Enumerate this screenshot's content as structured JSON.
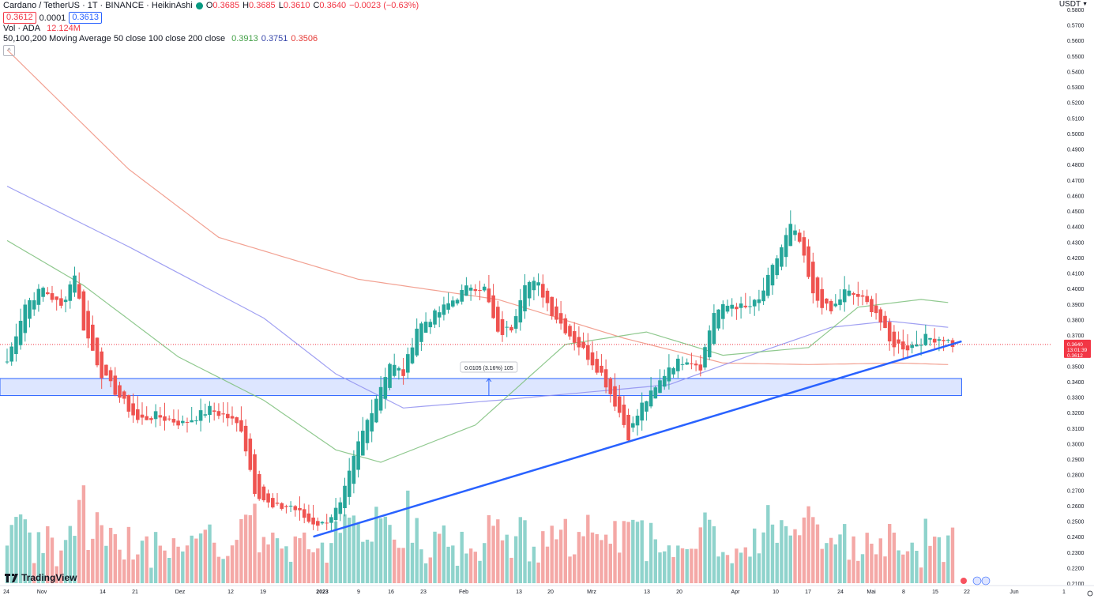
{
  "header": {
    "symbol": "Cardano / TetherUS · 1T · BINANCE · HeikinAshi",
    "ohlc": {
      "o_label": "O",
      "o": "0.3685",
      "h_label": "H",
      "h": "0.3685",
      "l_label": "L",
      "l": "0.3610",
      "c_label": "C",
      "c": "0.3640",
      "chg": "−0.0023 (−0.63%)"
    },
    "bid": "0.3612",
    "spread": "0.0001",
    "ask": "0.3613",
    "vol_label": "Vol · ADA",
    "vol_value": "12.124M",
    "ma_label": "50,100,200 Moving Average 50 close 100 close 200 close",
    "ma50_value": "0.3913",
    "ma100_value": "0.3751",
    "ma200_value": "0.3506",
    "collapse_icon": "chevron-up-icon"
  },
  "price_axis": {
    "unit": "USDT",
    "ticks": [
      "0.5800",
      "0.5700",
      "0.5600",
      "0.5500",
      "0.5400",
      "0.5300",
      "0.5200",
      "0.5100",
      "0.5000",
      "0.4900",
      "0.4800",
      "0.4700",
      "0.4600",
      "0.4500",
      "0.4400",
      "0.4300",
      "0.4200",
      "0.4100",
      "0.4000",
      "0.3900",
      "0.3800",
      "0.3700",
      "0.3600",
      "0.3500",
      "0.3400",
      "0.3300",
      "0.3200",
      "0.3100",
      "0.3000",
      "0.2900",
      "0.2800",
      "0.2700",
      "0.2600",
      "0.2500",
      "0.2400",
      "0.2300",
      "0.2200",
      "0.2100"
    ],
    "last_price": "0.3640",
    "countdown": "13:01:39",
    "bid_price": "0.3612"
  },
  "time_axis": {
    "labels": [
      "24",
      "Nov",
      "14",
      "21",
      "Dez",
      "12",
      "19",
      "2023",
      "9",
      "16",
      "23",
      "Feb",
      "13",
      "20",
      "Mrz",
      "13",
      "20",
      "Apr",
      "10",
      "17",
      "24",
      "Mai",
      "8",
      "15",
      "22",
      "Jun",
      "1"
    ]
  },
  "measure_label": "0.0105 (3.16%) 105",
  "logo_text": "TradingView",
  "colors": {
    "up": "#26a69a",
    "down": "#ef5350",
    "vol_up": "#8fd3cc",
    "vol_down": "#f4a8a6",
    "ma50": "#7cc07b",
    "ma100": "#8f8ff0",
    "ma200": "#f0907f",
    "trend": "#2962ff",
    "zone": "#2962ff",
    "last_label": "#f23645"
  },
  "chart_data": {
    "type": "candlestick",
    "x_range": [
      "2022-10-24",
      "2023-06-01"
    ],
    "ylim": [
      0.21,
      0.58
    ],
    "price_keyframes": [
      [
        "2022-10-24",
        0.353
      ],
      [
        "2022-10-28",
        0.39
      ],
      [
        "2022-11-01",
        0.4
      ],
      [
        "2022-11-05",
        0.388
      ],
      [
        "2022-11-08",
        0.41
      ],
      [
        "2022-11-10",
        0.375
      ],
      [
        "2022-11-14",
        0.345
      ],
      [
        "2022-11-18",
        0.33
      ],
      [
        "2022-11-22",
        0.315
      ],
      [
        "2022-11-26",
        0.318
      ],
      [
        "2022-12-02",
        0.313
      ],
      [
        "2022-12-08",
        0.322
      ],
      [
        "2022-12-12",
        0.317
      ],
      [
        "2022-12-15",
        0.31
      ],
      [
        "2022-12-18",
        0.27
      ],
      [
        "2022-12-22",
        0.258
      ],
      [
        "2022-12-26",
        0.26
      ],
      [
        "2022-12-30",
        0.25
      ],
      [
        "2023-01-02",
        0.248
      ],
      [
        "2023-01-06",
        0.26
      ],
      [
        "2023-01-10",
        0.3
      ],
      [
        "2023-01-14",
        0.33
      ],
      [
        "2023-01-17",
        0.352
      ],
      [
        "2023-01-20",
        0.345
      ],
      [
        "2023-01-23",
        0.375
      ],
      [
        "2023-01-28",
        0.385
      ],
      [
        "2023-02-01",
        0.395
      ],
      [
        "2023-02-04",
        0.402
      ],
      [
        "2023-02-07",
        0.4
      ],
      [
        "2023-02-10",
        0.37
      ],
      [
        "2023-02-13",
        0.375
      ],
      [
        "2023-02-16",
        0.405
      ],
      [
        "2023-02-19",
        0.402
      ],
      [
        "2023-02-22",
        0.385
      ],
      [
        "2023-02-26",
        0.37
      ],
      [
        "2023-03-01",
        0.36
      ],
      [
        "2023-03-05",
        0.345
      ],
      [
        "2023-03-09",
        0.32
      ],
      [
        "2023-03-11",
        0.305
      ],
      [
        "2023-03-14",
        0.325
      ],
      [
        "2023-03-17",
        0.335
      ],
      [
        "2023-03-20",
        0.35
      ],
      [
        "2023-03-24",
        0.355
      ],
      [
        "2023-03-27",
        0.35
      ],
      [
        "2023-03-30",
        0.385
      ],
      [
        "2023-04-03",
        0.39
      ],
      [
        "2023-04-06",
        0.387
      ],
      [
        "2023-04-09",
        0.392
      ],
      [
        "2023-04-13",
        0.42
      ],
      [
        "2023-04-16",
        0.44
      ],
      [
        "2023-04-18",
        0.43
      ],
      [
        "2023-04-21",
        0.395
      ],
      [
        "2023-04-25",
        0.385
      ],
      [
        "2023-04-28",
        0.398
      ],
      [
        "2023-05-01",
        0.395
      ],
      [
        "2023-05-05",
        0.385
      ],
      [
        "2023-05-08",
        0.365
      ],
      [
        "2023-05-12",
        0.362
      ],
      [
        "2023-05-16",
        0.368
      ],
      [
        "2023-05-20",
        0.368
      ],
      [
        "2023-05-22",
        0.364
      ]
    ],
    "ma50": [
      [
        "2022-10-24",
        0.431
      ],
      [
        "2022-11-10",
        0.402
      ],
      [
        "2022-12-01",
        0.356
      ],
      [
        "2022-12-20",
        0.328
      ],
      [
        "2023-01-05",
        0.296
      ],
      [
        "2023-01-15",
        0.288
      ],
      [
        "2023-02-05",
        0.312
      ],
      [
        "2023-02-25",
        0.364
      ],
      [
        "2023-03-15",
        0.372
      ],
      [
        "2023-04-01",
        0.357
      ],
      [
        "2023-04-20",
        0.362
      ],
      [
        "2023-05-01",
        0.388
      ],
      [
        "2023-05-15",
        0.393
      ],
      [
        "2023-05-21",
        0.391
      ]
    ],
    "ma100": [
      [
        "2022-10-24",
        0.466
      ],
      [
        "2022-11-20",
        0.427
      ],
      [
        "2022-12-20",
        0.381
      ],
      [
        "2023-01-05",
        0.345
      ],
      [
        "2023-01-20",
        0.323
      ],
      [
        "2023-02-10",
        0.328
      ],
      [
        "2023-03-05",
        0.334
      ],
      [
        "2023-03-20",
        0.338
      ],
      [
        "2023-04-10",
        0.36
      ],
      [
        "2023-04-25",
        0.375
      ],
      [
        "2023-05-08",
        0.379
      ],
      [
        "2023-05-21",
        0.375
      ]
    ],
    "ma200": [
      [
        "2022-10-24",
        0.554
      ],
      [
        "2022-11-20",
        0.477
      ],
      [
        "2022-12-10",
        0.433
      ],
      [
        "2023-01-10",
        0.406
      ],
      [
        "2023-02-10",
        0.393
      ],
      [
        "2023-03-10",
        0.368
      ],
      [
        "2023-04-01",
        0.352
      ],
      [
        "2023-04-20",
        0.351
      ],
      [
        "2023-05-10",
        0.352
      ],
      [
        "2023-05-21",
        0.351
      ]
    ],
    "trendline": [
      [
        "2022-12-31",
        0.24
      ],
      [
        "2023-05-24",
        0.366
      ]
    ],
    "zone": {
      "from": "2022-10-24",
      "to": "2023-05-24",
      "low": 0.331,
      "high": 0.342
    },
    "measure": {
      "date": "2023-02-08",
      "from": 0.331,
      "to": 0.342,
      "label": "0.0105 (3.16%) 105"
    },
    "last_price": 0.364,
    "volume_scale_max": 100
  }
}
